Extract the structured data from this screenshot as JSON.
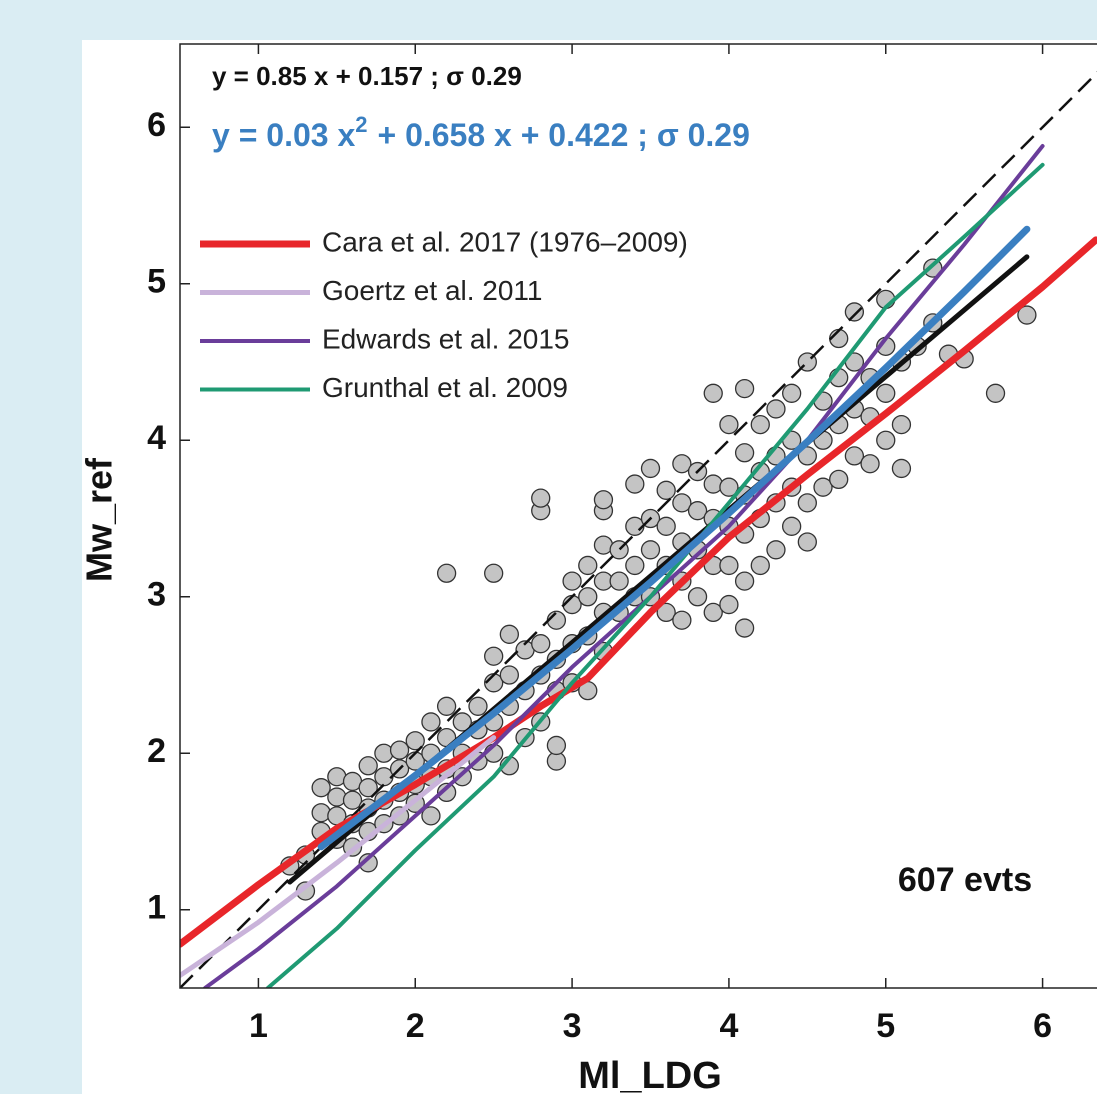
{
  "chart_data": {
    "type": "scatter",
    "x_label": "Ml_LDG",
    "y_label": "Mw_ref",
    "equation_1": "y = 0.85 x + 0.157 ; σ 0.29",
    "equation_2": [
      "y = 0.03 x",
      "2",
      "+ 0.658 x + 0.422 ; σ 0.29"
    ],
    "annotation": "607 evts",
    "xlim": [
      0.5,
      6.5
    ],
    "ylim": [
      0.5,
      6.5
    ],
    "xticks": [
      1,
      2,
      3,
      4,
      5,
      6
    ],
    "yticks": [
      1,
      2,
      3,
      4,
      5,
      6
    ],
    "grid": false,
    "legend": "upper left",
    "series": [
      {
        "style": "markers",
        "color": "#c4c4c4",
        "x": [
          1.2,
          1.3,
          1.3,
          1.4,
          1.4,
          1.4,
          1.5,
          1.5,
          1.5,
          1.5,
          1.6,
          1.6,
          1.6,
          1.6,
          1.7,
          1.7,
          1.7,
          1.7,
          1.7,
          1.8,
          1.8,
          1.8,
          1.8,
          1.9,
          1.9,
          1.9,
          1.9,
          2.0,
          2.0,
          2.0,
          2.0,
          2.1,
          2.1,
          2.1,
          2.1,
          2.2,
          2.2,
          2.2,
          2.2,
          2.2,
          2.3,
          2.3,
          2.3,
          2.4,
          2.4,
          2.4,
          2.5,
          2.5,
          2.5,
          2.5,
          2.5,
          2.6,
          2.6,
          2.6,
          2.6,
          2.7,
          2.7,
          2.7,
          2.8,
          2.8,
          2.8,
          2.8,
          2.8,
          2.9,
          2.9,
          2.9,
          2.9,
          2.9,
          3.0,
          3.0,
          3.0,
          3.0,
          3.1,
          3.1,
          3.1,
          3.1,
          3.2,
          3.2,
          3.2,
          3.2,
          3.2,
          3.2,
          3.3,
          3.3,
          3.3,
          3.4,
          3.4,
          3.4,
          3.4,
          3.5,
          3.5,
          3.5,
          3.5,
          3.6,
          3.6,
          3.6,
          3.6,
          3.7,
          3.7,
          3.7,
          3.7,
          3.7,
          3.8,
          3.8,
          3.8,
          3.8,
          3.9,
          3.9,
          3.9,
          3.9,
          3.9,
          4.0,
          4.0,
          4.0,
          4.0,
          4.0,
          4.1,
          4.1,
          4.1,
          4.1,
          4.1,
          4.1,
          4.2,
          4.2,
          4.2,
          4.2,
          4.3,
          4.3,
          4.3,
          4.3,
          4.4,
          4.4,
          4.4,
          4.4,
          4.5,
          4.5,
          4.5,
          4.5,
          4.6,
          4.6,
          4.6,
          4.7,
          4.7,
          4.7,
          4.7,
          4.8,
          4.8,
          4.8,
          4.8,
          4.9,
          4.9,
          4.9,
          5.0,
          5.0,
          5.0,
          5.0,
          5.1,
          5.1,
          5.1,
          5.2,
          5.3,
          5.3,
          5.4,
          5.5,
          5.7,
          5.9
        ],
        "values": [
          1.28,
          1.12,
          1.35,
          1.5,
          1.62,
          1.78,
          1.45,
          1.6,
          1.72,
          1.85,
          1.55,
          1.7,
          1.82,
          1.4,
          1.5,
          1.65,
          1.78,
          1.92,
          1.3,
          1.55,
          1.7,
          1.85,
          2.0,
          1.6,
          1.75,
          1.9,
          2.02,
          1.68,
          1.8,
          1.95,
          2.08,
          1.6,
          1.85,
          2.0,
          2.2,
          1.75,
          1.9,
          2.1,
          2.3,
          3.15,
          1.85,
          2.0,
          2.2,
          1.95,
          2.15,
          2.3,
          2.0,
          2.2,
          2.45,
          2.62,
          3.15,
          1.92,
          2.3,
          2.5,
          2.76,
          2.1,
          2.4,
          2.66,
          2.2,
          2.5,
          2.7,
          3.55,
          3.63,
          1.95,
          2.05,
          2.4,
          2.6,
          2.85,
          2.45,
          2.7,
          2.95,
          3.1,
          2.4,
          2.75,
          3.0,
          3.2,
          2.65,
          2.9,
          3.1,
          3.33,
          3.55,
          3.62,
          2.9,
          3.1,
          3.3,
          3.0,
          3.2,
          3.45,
          3.72,
          3.0,
          3.3,
          3.5,
          3.82,
          2.9,
          3.2,
          3.45,
          3.68,
          2.85,
          3.1,
          3.35,
          3.6,
          3.85,
          3.0,
          3.3,
          3.55,
          3.8,
          2.9,
          3.2,
          3.5,
          3.72,
          4.3,
          2.95,
          3.2,
          3.45,
          3.7,
          4.1,
          2.8,
          3.1,
          3.4,
          3.65,
          3.92,
          4.33,
          3.2,
          3.5,
          3.8,
          4.1,
          3.3,
          3.6,
          3.9,
          4.2,
          3.45,
          3.7,
          4.0,
          4.3,
          3.35,
          3.6,
          3.9,
          4.5,
          3.7,
          4.0,
          4.25,
          3.75,
          4.1,
          4.4,
          4.65,
          3.9,
          4.2,
          4.5,
          4.82,
          3.85,
          4.15,
          4.4,
          4.0,
          4.3,
          4.6,
          4.9,
          3.82,
          4.1,
          4.5,
          4.6,
          4.75,
          5.1,
          4.55,
          4.52,
          4.3,
          4.8
        ]
      },
      {
        "style": "dashed",
        "color": "#111111",
        "x": [
          0.5,
          6.5
        ],
        "values": [
          0.5,
          6.5
        ]
      },
      {
        "style": "line",
        "color": "#111111",
        "x": [
          1.2,
          5.9
        ],
        "values": [
          1.177,
          5.172
        ]
      },
      {
        "name": "Cara et al. 2017 (1976–2009)",
        "style": "line",
        "color": "#e8262a",
        "x": [
          0.5,
          1,
          1.5,
          2,
          2.5,
          2.8,
          3.1,
          3.5,
          4,
          4.5,
          5,
          5.5,
          6,
          6.34
        ],
        "values": [
          0.78,
          1.16,
          1.52,
          1.8,
          2.1,
          2.3,
          2.48,
          2.9,
          3.38,
          3.78,
          4.17,
          4.57,
          4.98,
          5.28
        ]
      },
      {
        "name": "Goertz et al. 2011",
        "style": "line",
        "color": "#c9b3da",
        "x": [
          0.5,
          1,
          1.5,
          2,
          2.5
        ],
        "values": [
          0.58,
          0.92,
          1.3,
          1.7,
          2.1
        ]
      },
      {
        "name": "Edwards et al. 2015",
        "style": "line",
        "color": "#6a3d9a",
        "x": [
          0.66,
          1,
          1.5,
          2,
          2.5,
          3,
          3.5,
          4,
          4.5,
          5,
          5.5,
          6
        ],
        "values": [
          0.5,
          0.75,
          1.15,
          1.6,
          2.05,
          2.55,
          3.0,
          3.45,
          4.0,
          4.65,
          5.25,
          5.88
        ]
      },
      {
        "name": "Grunthal et al. 2009",
        "style": "line",
        "color": "#1f9a73",
        "x": [
          1.06,
          1.5,
          2,
          2.5,
          3,
          3.5,
          4,
          4.5,
          5,
          5.5,
          6
        ],
        "values": [
          0.5,
          0.88,
          1.38,
          1.85,
          2.45,
          3.0,
          3.6,
          4.2,
          4.85,
          5.3,
          5.76
        ]
      },
      {
        "style": "line",
        "color": "#3a7fc1",
        "x": [
          1.4,
          2,
          2.5,
          3,
          3.5,
          4,
          4.5,
          5,
          5.5,
          5.9
        ],
        "values": [
          1.402,
          1.858,
          2.2545,
          2.666,
          3.0925,
          3.534,
          3.9905,
          4.462,
          4.9485,
          5.3485
        ]
      }
    ]
  }
}
